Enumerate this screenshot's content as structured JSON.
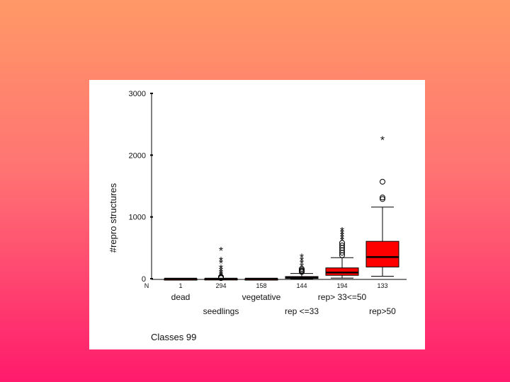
{
  "chart_data": {
    "type": "boxplot",
    "title": "",
    "ylabel": "#repro structures",
    "xlabel": "Classes 99",
    "ylim": [
      0,
      3000
    ],
    "yticks": [
      0,
      1000,
      2000,
      3000
    ],
    "n_label": "N",
    "categories": [
      {
        "name": "dead",
        "n": "1",
        "row": 1,
        "min": 0,
        "q1": 0,
        "median": 0,
        "q3": 0,
        "max": 0,
        "outliers_circle": [],
        "outliers_star": [],
        "color": "#cc0000"
      },
      {
        "name": "seedlings",
        "n": "294",
        "row": 2,
        "min": 0,
        "q1": 0,
        "median": 0,
        "q3": 2,
        "max": 5,
        "outliers_circle": [
          10,
          20,
          30
        ],
        "outliers_star": [
          50,
          75,
          100,
          130,
          170,
          250,
          300,
          460
        ],
        "color": "#cc0000"
      },
      {
        "name": "vegetative",
        "n": "158",
        "row": 1,
        "min": 0,
        "q1": 0,
        "median": 0,
        "q3": 0,
        "max": 0,
        "outliers_circle": [],
        "outliers_star": [],
        "color": "#cc0000"
      },
      {
        "name": "rep <=33",
        "n": "144",
        "row": 2,
        "min": 0,
        "q1": 5,
        "median": 15,
        "q3": 35,
        "max": 85,
        "outliers_circle": [
          110,
          125,
          140,
          160
        ],
        "outliers_star": [
          200,
          250,
          300,
          350
        ],
        "color": "#cc0000"
      },
      {
        "name": "rep> 33<=50",
        "n": "194",
        "row": 1,
        "min": 10,
        "q1": 55,
        "median": 100,
        "q3": 175,
        "max": 340,
        "outliers_circle": [
          380,
          420,
          460,
          500,
          540,
          580
        ],
        "outliers_star": [
          620,
          660,
          700,
          740,
          780
        ],
        "color": "#ff0000"
      },
      {
        "name": "rep>50",
        "n": "133",
        "row": 2,
        "min": 40,
        "q1": 190,
        "median": 350,
        "q3": 605,
        "max": 1160,
        "outliers_circle": [
          1290,
          1315,
          1570
        ],
        "outliers_star": [
          2250
        ],
        "color": "#ff0000"
      }
    ]
  }
}
